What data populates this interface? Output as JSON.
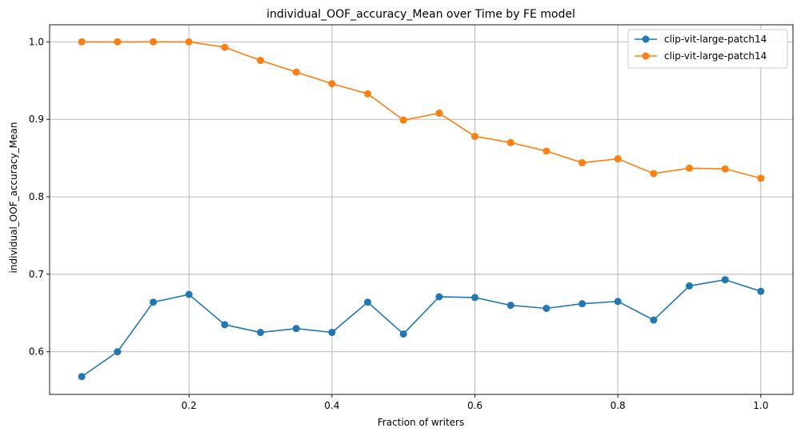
{
  "chart_data": {
    "type": "line",
    "title": "individual_OOF_accuracy_Mean over Time by FE model",
    "xlabel": "Fraction of writers",
    "ylabel": "individual_OOF_accuracy_Mean",
    "xlim": [
      0.005,
      1.045
    ],
    "ylim": [
      0.545,
      1.022
    ],
    "xticks": [
      0.2,
      0.4,
      0.6,
      0.8,
      1.0
    ],
    "xtick_labels": [
      "0.2",
      "0.4",
      "0.6",
      "0.8",
      "1.0"
    ],
    "yticks": [
      0.6,
      0.7,
      0.8,
      0.9,
      1.0
    ],
    "ytick_labels": [
      "0.6",
      "0.7",
      "0.8",
      "0.9",
      "1.0"
    ],
    "grid": true,
    "legend_position": "top-right",
    "x": [
      0.05,
      0.1,
      0.15,
      0.2,
      0.25,
      0.3,
      0.35,
      0.4,
      0.45,
      0.5,
      0.55,
      0.6,
      0.65,
      0.7,
      0.75,
      0.8,
      0.85,
      0.9,
      0.95,
      1.0
    ],
    "series": [
      {
        "name": "clip-vit-large-patch14",
        "color": "#1f77b4",
        "values": [
          0.568,
          0.6,
          0.664,
          0.674,
          0.635,
          0.625,
          0.63,
          0.625,
          0.664,
          0.623,
          0.671,
          0.67,
          0.66,
          0.656,
          0.662,
          0.665,
          0.641,
          0.685,
          0.693,
          0.678
        ]
      },
      {
        "name": "clip-vit-large-patch14",
        "color": "#ff7f0e",
        "values": [
          1.0,
          1.0,
          1.0,
          1.0,
          0.993,
          0.976,
          0.961,
          0.946,
          0.933,
          0.899,
          0.908,
          0.878,
          0.87,
          0.859,
          0.844,
          0.849,
          0.83,
          0.837,
          0.836,
          0.824
        ]
      }
    ]
  }
}
